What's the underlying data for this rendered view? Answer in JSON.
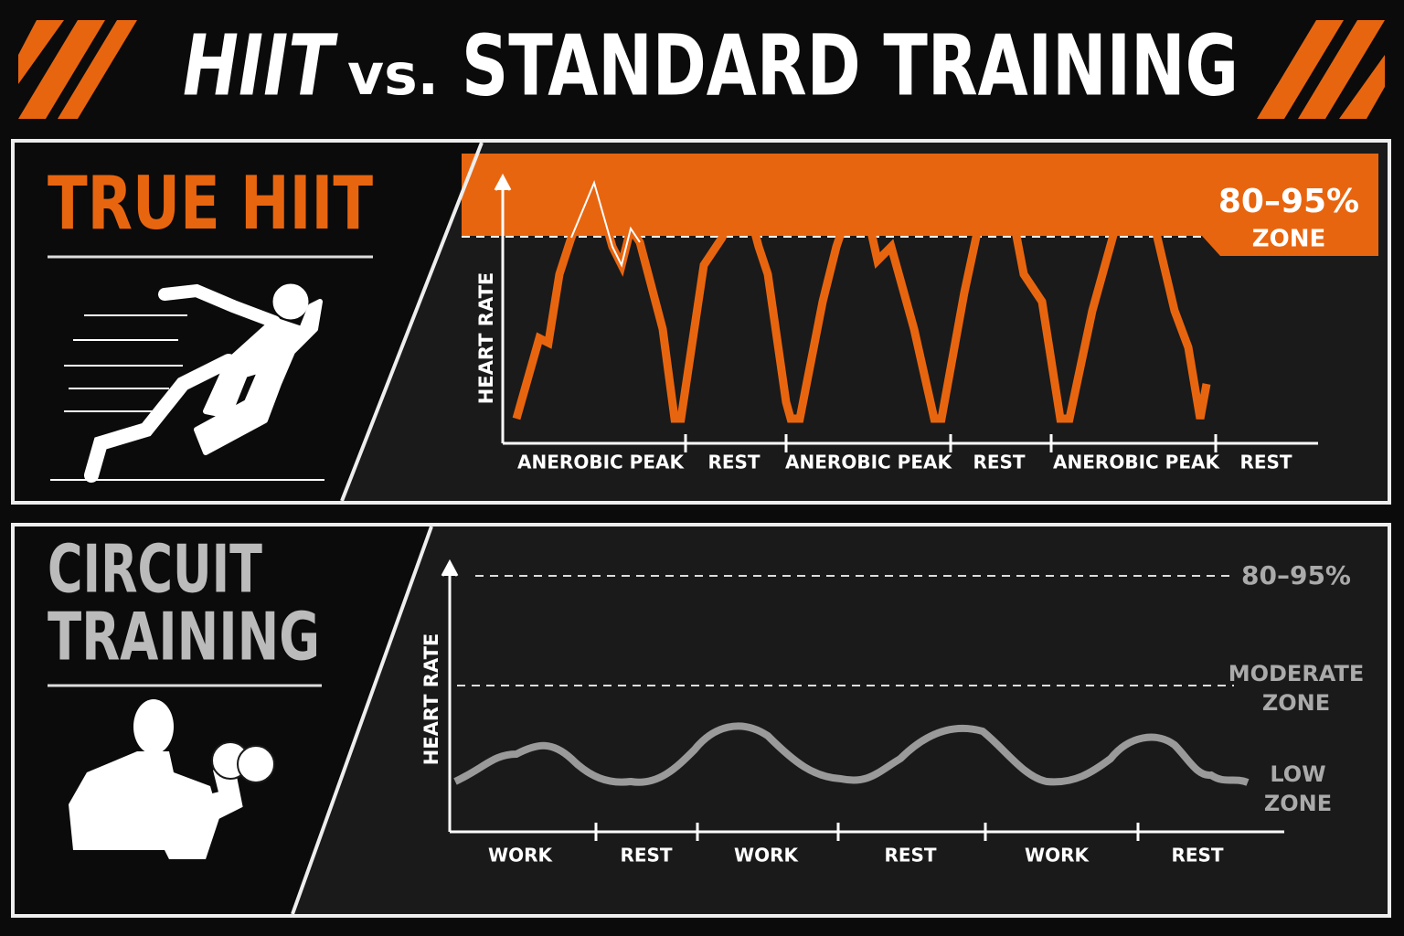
{
  "header": {
    "title_parts": [
      "HIIT",
      "vs.",
      "STANDARD TRAINING"
    ]
  },
  "panels": [
    {
      "title_lines": [
        "TRUE HIIT"
      ],
      "axis_label": "HEART RATE",
      "phases": [
        "ANEROBIC PEAK",
        "REST",
        "ANEROBIC PEAK",
        "REST",
        "ANEROBIC PEAK",
        "REST"
      ],
      "zone_labels": [
        [
          "80–95%",
          "ZONE"
        ]
      ]
    },
    {
      "title_lines": [
        "CIRCUIT",
        "TRAINING"
      ],
      "axis_label": "HEART RATE",
      "phases": [
        "WORK",
        "REST",
        "WORK",
        "REST",
        "WORK",
        "REST"
      ],
      "zone_labels": [
        [
          "80–95%"
        ],
        [
          "MODERATE",
          "ZONE"
        ],
        [
          "LOW",
          "ZONE"
        ]
      ]
    }
  ]
}
